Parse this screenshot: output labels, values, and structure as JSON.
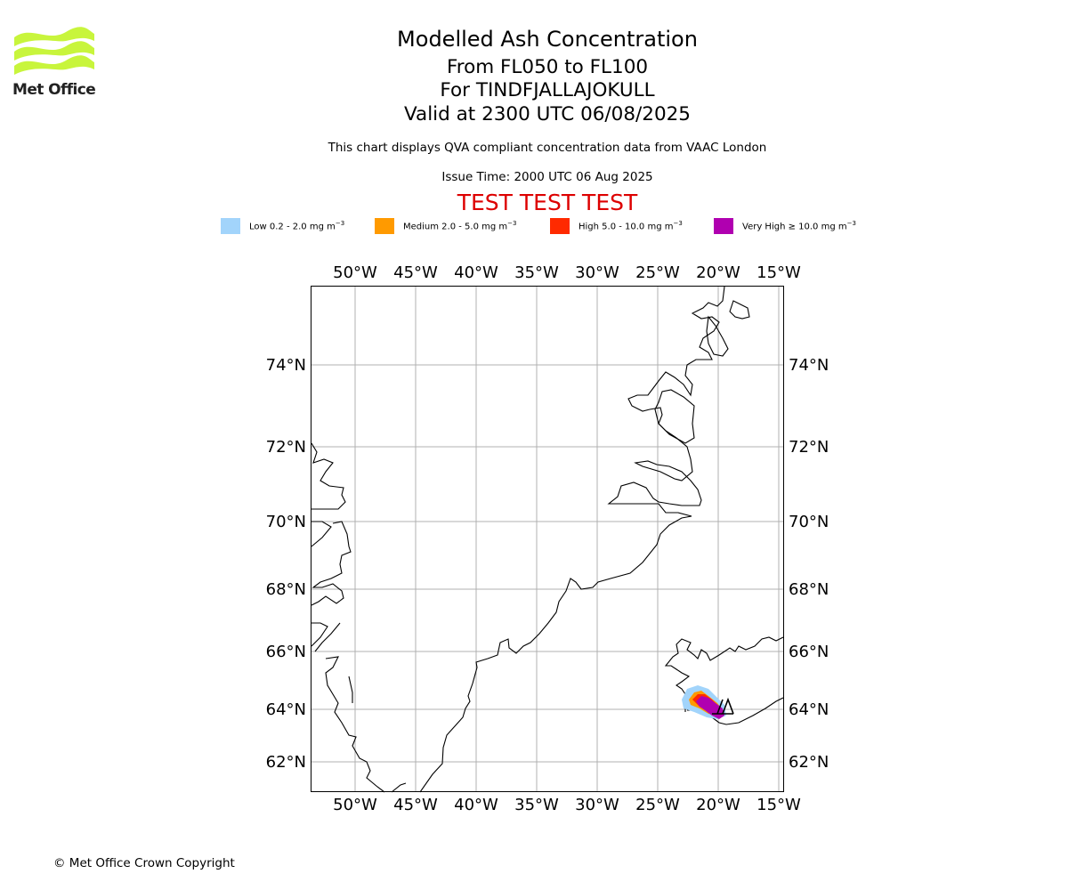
{
  "header": {
    "title": "Modelled Ash Concentration",
    "levels": "From FL050 to FL100",
    "volcano": "For TINDFJALLAJOKULL",
    "valid": "Valid at 2300 UTC 06/08/2025",
    "disclaimer": "This chart displays QVA compliant concentration data from VAAC London",
    "issue_time": "Issue Time: 2000 UTC 06 Aug 2025",
    "test_banner": "TEST TEST TEST"
  },
  "logo": {
    "text": "Met Office",
    "color": "#c8f53c"
  },
  "legend": [
    {
      "label": "Low 0.2 - 2.0 mg m",
      "exp": "−3",
      "color": "#a2d4fb"
    },
    {
      "label": "Medium 2.0 - 5.0 mg m",
      "exp": "−3",
      "color": "#ff9a00"
    },
    {
      "label": "High 5.0 - 10.0 mg m",
      "exp": "−3",
      "color": "#ff2a00"
    },
    {
      "label": "Very High  ≥  10.0 mg m",
      "exp": "−3",
      "color": "#b000b0"
    }
  ],
  "map": {
    "lon_labels": [
      "50°W",
      "45°W",
      "40°W",
      "35°W",
      "30°W",
      "25°W",
      "20°W",
      "15°W"
    ],
    "lat_labels": [
      "74°N",
      "72°N",
      "70°N",
      "68°N",
      "66°N",
      "64°N",
      "62°N"
    ],
    "volcano_name": "TINDFJALLAJOKULL"
  },
  "footer": {
    "copyright": "© Met Office Crown Copyright"
  }
}
